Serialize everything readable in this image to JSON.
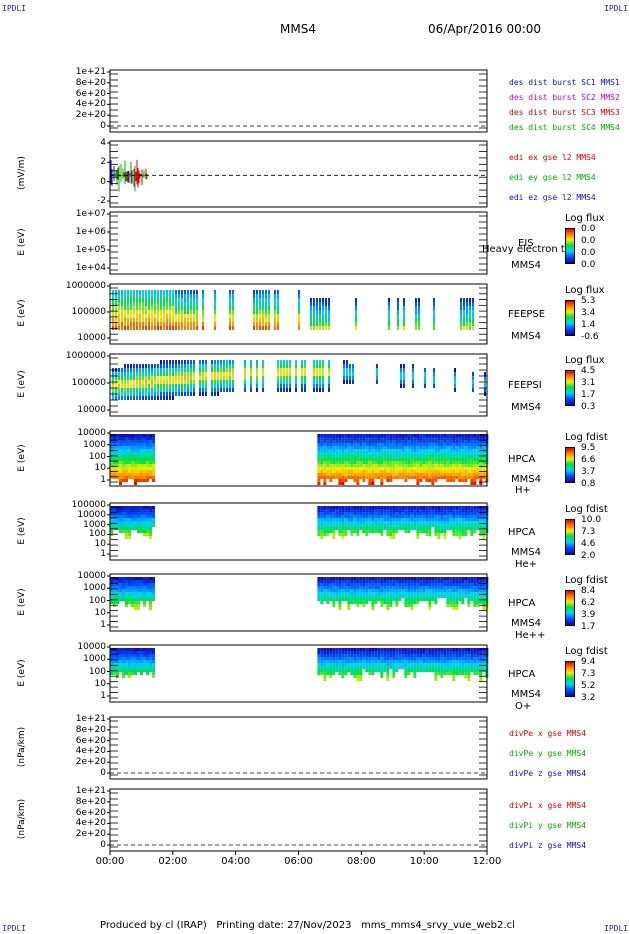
{
  "corners": {
    "tl": "IPDLI",
    "tr": "IPDLI",
    "bl": "IPDLI",
    "br": "IPDLI"
  },
  "header": {
    "spacecraft": "MMS4",
    "date": "06/Apr/2016 00:00"
  },
  "footer": "Produced by cl (IRAP)   Printing date: 27/Nov/2023   mms_mms4_srvy_vue_web2.cl",
  "colors": {
    "red": "#e00000",
    "green": "#00b000",
    "blue": "#1010c8",
    "magenta": "#d000d0",
    "black": "#000000"
  },
  "chart_data": [
    {
      "id": "p1",
      "type": "line",
      "ylabel": "",
      "ytick_labels": [
        "1e+21",
        "8e+20",
        "6e+20",
        "4e+20",
        "2e+20",
        "0"
      ],
      "legend": [
        {
          "text": "des dist burst SC1 MMS1",
          "color": "#1010c8"
        },
        {
          "text": "des dist burst SC2 MMS2",
          "color": "#d000d0"
        },
        {
          "text": "des dist burst SC3 MMS3",
          "color": "#e00000"
        },
        {
          "text": "des dist burst SC4 MMS4",
          "color": "#00b000"
        }
      ],
      "series": []
    },
    {
      "id": "p2",
      "type": "line",
      "ylabel": "(mV/m)",
      "ytick_labels": [
        "4",
        "2",
        "0",
        "-2"
      ],
      "ylim": [
        -4,
        5
      ],
      "legend": [
        {
          "text": "edi ex gse l2 MMS4",
          "color": "#e00000"
        },
        {
          "text": "edi ey gse l2 MMS4",
          "color": "#00b000"
        },
        {
          "text": "edi ez gse l2 MMS4",
          "color": "#1010c8"
        }
      ],
      "data_range_hours": [
        0.0,
        1.2
      ]
    },
    {
      "id": "p3",
      "type": "heatmap",
      "ylabel": "E (eV)",
      "ytick_labels": [
        "1e+07",
        "1e+06",
        "1e+05",
        "1e+04"
      ],
      "instrument": [
        "EIS",
        "MMS4"
      ],
      "overlay_label": "Heavy electron to",
      "colorbar_title": "Log flux",
      "colorbar_ticks": [
        "0.0",
        "0.0",
        "0.0",
        "0.0"
      ]
    },
    {
      "id": "p4",
      "type": "heatmap",
      "ylabel": "E (eV)",
      "ytick_labels": [
        "1000000",
        "100000",
        "10000"
      ],
      "instrument": [
        "FEEPSE",
        "MMS4"
      ],
      "colorbar_title": "Log flux",
      "colorbar_ticks": [
        "5.3",
        "3.4",
        "1.4",
        "-0.6"
      ]
    },
    {
      "id": "p5",
      "type": "heatmap",
      "ylabel": "E (eV)",
      "ytick_labels": [
        "1000000",
        "100000",
        "10000"
      ],
      "instrument": [
        "FEEPSI",
        "MMS4"
      ],
      "colorbar_title": "Log flux",
      "colorbar_ticks": [
        "4.5",
        "3.1",
        "1.7",
        "0.3"
      ]
    },
    {
      "id": "p6",
      "type": "heatmap",
      "ylabel": "E (eV)",
      "ytick_labels": [
        "10000",
        "1000",
        "100",
        "10",
        "1"
      ],
      "instrument": [
        "HPCA",
        "MMS4",
        "H+"
      ],
      "colorbar_title": "Log fdist",
      "colorbar_ticks": [
        "9.5",
        "6.6",
        "3.7",
        "0.8"
      ],
      "data_intervals_hours": [
        [
          0.0,
          1.4
        ],
        [
          6.6,
          12.0
        ]
      ]
    },
    {
      "id": "p7",
      "type": "heatmap",
      "ylabel": "E (eV)",
      "ytick_labels": [
        "100000",
        "10000",
        "1000",
        "100",
        "10",
        "1"
      ],
      "instrument": [
        "HPCA",
        "MMS4",
        "He+"
      ],
      "colorbar_title": "Log fdist",
      "colorbar_ticks": [
        "10.0",
        "7.3",
        "4.6",
        "2.0"
      ],
      "data_intervals_hours": [
        [
          0.0,
          1.4
        ],
        [
          6.6,
          12.0
        ]
      ]
    },
    {
      "id": "p8",
      "type": "heatmap",
      "ylabel": "E (eV)",
      "ytick_labels": [
        "10000",
        "1000",
        "100",
        "10",
        "1"
      ],
      "instrument": [
        "HPCA",
        "MMS4",
        "He++"
      ],
      "colorbar_title": "Log fdist",
      "colorbar_ticks": [
        "8.4",
        "6.2",
        "3.9",
        "1.7"
      ],
      "data_intervals_hours": [
        [
          0.0,
          1.4
        ],
        [
          6.6,
          12.0
        ]
      ]
    },
    {
      "id": "p9",
      "type": "heatmap",
      "ylabel": "E (eV)",
      "ytick_labels": [
        "10000",
        "1000",
        "100",
        "10",
        "1"
      ],
      "instrument": [
        "HPCA",
        "MMS4",
        "O+"
      ],
      "colorbar_title": "Log fdist",
      "colorbar_ticks": [
        "9.4",
        "7.3",
        "5.2",
        "3.2"
      ],
      "data_intervals_hours": [
        [
          0.0,
          1.4
        ],
        [
          6.6,
          12.0
        ]
      ]
    },
    {
      "id": "p10",
      "type": "line",
      "ylabel": "(nPa/km)",
      "ytick_labels": [
        "1e+21",
        "8e+20",
        "6e+20",
        "4e+20",
        "2e+20",
        "0"
      ],
      "legend": [
        {
          "text": "divPe x gse MMS4",
          "color": "#e00000"
        },
        {
          "text": "divPe y gse MMS4",
          "color": "#00b000"
        },
        {
          "text": "divPe z gse MMS4",
          "color": "#1010c8"
        }
      ],
      "series": []
    },
    {
      "id": "p11",
      "type": "line",
      "ylabel": "(nPa/km)",
      "ytick_labels": [
        "1e+21",
        "8e+20",
        "6e+20",
        "4e+20",
        "2e+20",
        "0"
      ],
      "legend": [
        {
          "text": "divPi x gse MMS4",
          "color": "#e00000"
        },
        {
          "text": "divPi y gse MMS4",
          "color": "#00b000"
        },
        {
          "text": "divPi z gse MMS4",
          "color": "#1010c8"
        }
      ],
      "series": []
    }
  ],
  "xaxis": {
    "tick_labels": [
      "00:00",
      "02:00",
      "04:00",
      "06:00",
      "08:00",
      "10:00",
      "12:00"
    ],
    "xlim_hours": [
      0,
      12
    ]
  }
}
